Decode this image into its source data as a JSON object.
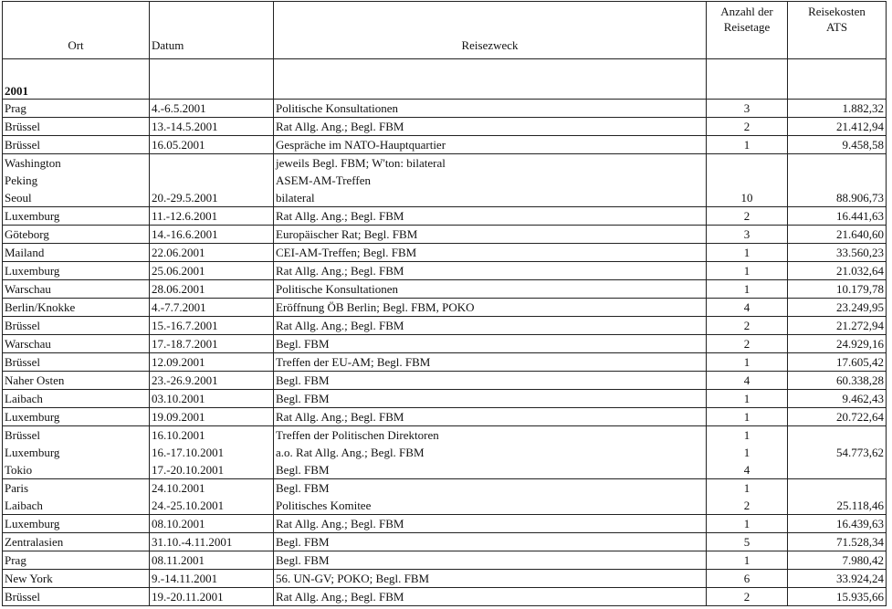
{
  "headers": {
    "ort": "Ort",
    "datum": "Datum",
    "zweck": "Reisezweck",
    "tage_1": "Anzahl der",
    "tage_2": "Reisetage",
    "kosten_1": "Reisekosten",
    "kosten_2": "ATS"
  },
  "year": "2001",
  "groups": [
    {
      "ort": [
        "Prag"
      ],
      "datum": [
        "4.-6.5.2001"
      ],
      "zweck": [
        "Politische Konsultationen"
      ],
      "tage": [
        "3"
      ],
      "kosten": [
        "1.882,32"
      ]
    },
    {
      "ort": [
        "Brüssel"
      ],
      "datum": [
        "13.-14.5.2001"
      ],
      "zweck": [
        "Rat Allg. Ang.; Begl. FBM"
      ],
      "tage": [
        "2"
      ],
      "kosten": [
        "21.412,94"
      ]
    },
    {
      "ort": [
        "Brüssel"
      ],
      "datum": [
        "16.05.2001"
      ],
      "zweck": [
        "Gespräche im NATO-Hauptquartier"
      ],
      "tage": [
        "1"
      ],
      "kosten": [
        "9.458,58"
      ]
    },
    {
      "ort": [
        "Washington",
        "Peking",
        "Seoul"
      ],
      "datum": [
        "",
        "",
        "20.-29.5.2001"
      ],
      "zweck": [
        "jeweils Begl. FBM; W'ton: bilateral",
        "ASEM-AM-Treffen",
        "bilateral"
      ],
      "tage": [
        "",
        "",
        "10"
      ],
      "kosten": [
        "",
        "",
        "88.906,73"
      ]
    },
    {
      "ort": [
        "Luxemburg"
      ],
      "datum": [
        "11.-12.6.2001"
      ],
      "zweck": [
        "Rat Allg. Ang.; Begl. FBM"
      ],
      "tage": [
        "2"
      ],
      "kosten": [
        "16.441,63"
      ]
    },
    {
      "ort": [
        "Göteborg"
      ],
      "datum": [
        "14.-16.6.2001"
      ],
      "zweck": [
        "Europäischer Rat; Begl. FBM"
      ],
      "tage": [
        "3"
      ],
      "kosten": [
        "21.640,60"
      ]
    },
    {
      "ort": [
        "Mailand"
      ],
      "datum": [
        "22.06.2001"
      ],
      "zweck": [
        "CEI-AM-Treffen; Begl. FBM"
      ],
      "tage": [
        "1"
      ],
      "kosten": [
        "33.560,23"
      ]
    },
    {
      "ort": [
        "Luxemburg"
      ],
      "datum": [
        "25.06.2001"
      ],
      "zweck": [
        "Rat Allg. Ang.; Begl. FBM"
      ],
      "tage": [
        "1"
      ],
      "kosten": [
        "21.032,64"
      ]
    },
    {
      "ort": [
        "Warschau"
      ],
      "datum": [
        "28.06.2001"
      ],
      "zweck": [
        "Politische Konsultationen"
      ],
      "tage": [
        "1"
      ],
      "kosten": [
        "10.179,78"
      ]
    },
    {
      "ort": [
        "Berlin/Knokke"
      ],
      "datum": [
        "4.-7.7.2001"
      ],
      "zweck": [
        "Eröffnung ÖB Berlin; Begl. FBM, POKO"
      ],
      "tage": [
        "4"
      ],
      "kosten": [
        "23.249,95"
      ]
    },
    {
      "ort": [
        "Brüssel"
      ],
      "datum": [
        "15.-16.7.2001"
      ],
      "zweck": [
        "Rat Allg. Ang.; Begl. FBM"
      ],
      "tage": [
        "2"
      ],
      "kosten": [
        "21.272,94"
      ]
    },
    {
      "ort": [
        "Warschau"
      ],
      "datum": [
        "17.-18.7.2001"
      ],
      "zweck": [
        "Begl. FBM"
      ],
      "tage": [
        "2"
      ],
      "kosten": [
        "24.929,16"
      ]
    },
    {
      "ort": [
        "Brüssel"
      ],
      "datum": [
        "12.09.2001"
      ],
      "zweck": [
        "Treffen der EU-AM; Begl. FBM"
      ],
      "tage": [
        "1"
      ],
      "kosten": [
        "17.605,42"
      ]
    },
    {
      "ort": [
        "Naher Osten"
      ],
      "datum": [
        "23.-26.9.2001"
      ],
      "zweck": [
        "Begl. FBM"
      ],
      "tage": [
        "4"
      ],
      "kosten": [
        "60.338,28"
      ]
    },
    {
      "ort": [
        "Laibach"
      ],
      "datum": [
        "03.10.2001"
      ],
      "zweck": [
        "Begl. FBM"
      ],
      "tage": [
        "1"
      ],
      "kosten": [
        "9.462,43"
      ]
    },
    {
      "ort": [
        "Luxemburg"
      ],
      "datum": [
        "19.09.2001"
      ],
      "zweck": [
        "Rat Allg. Ang.; Begl. FBM"
      ],
      "tage": [
        "1"
      ],
      "kosten": [
        "20.722,64"
      ]
    },
    {
      "ort": [
        "Brüssel",
        "Luxemburg",
        "Tokio"
      ],
      "datum": [
        "16.10.2001",
        "16.-17.10.2001",
        "17.-20.10.2001"
      ],
      "zweck": [
        "Treffen der Politischen Direktoren",
        "a.o. Rat Allg. Ang.; Begl. FBM",
        "Begl. FBM"
      ],
      "tage": [
        "1",
        "1",
        "4"
      ],
      "kosten": [
        "",
        "54.773,62",
        ""
      ]
    },
    {
      "ort": [
        "Paris",
        "Laibach"
      ],
      "datum": [
        "24.10.2001",
        "24.-25.10.2001"
      ],
      "zweck": [
        "Begl. FBM",
        "Politisches Komitee"
      ],
      "tage": [
        "1",
        "2"
      ],
      "kosten": [
        "",
        "25.118,46"
      ]
    },
    {
      "ort": [
        "Luxemburg"
      ],
      "datum": [
        "08.10.2001"
      ],
      "zweck": [
        "Rat Allg. Ang.; Begl. FBM"
      ],
      "tage": [
        "1"
      ],
      "kosten": [
        "16.439,63"
      ]
    },
    {
      "ort": [
        "Zentralasien"
      ],
      "datum": [
        "31.10.-4.11.2001"
      ],
      "zweck": [
        "Begl. FBM"
      ],
      "tage": [
        "5"
      ],
      "kosten": [
        "71.528,34"
      ]
    },
    {
      "ort": [
        "Prag"
      ],
      "datum": [
        "08.11.2001"
      ],
      "zweck": [
        "Begl. FBM"
      ],
      "tage": [
        "1"
      ],
      "kosten": [
        "7.980,42"
      ]
    },
    {
      "ort": [
        "New York"
      ],
      "datum": [
        "9.-14.11.2001"
      ],
      "zweck": [
        "56. UN-GV; POKO; Begl. FBM"
      ],
      "tage": [
        "6"
      ],
      "kosten": [
        "33.924,24"
      ]
    },
    {
      "ort": [
        "Brüssel"
      ],
      "datum": [
        "19.-20.11.2001"
      ],
      "zweck": [
        "Rat Allg. Ang.; Begl. FBM"
      ],
      "tage": [
        "2"
      ],
      "kosten": [
        "15.935,66"
      ]
    }
  ]
}
